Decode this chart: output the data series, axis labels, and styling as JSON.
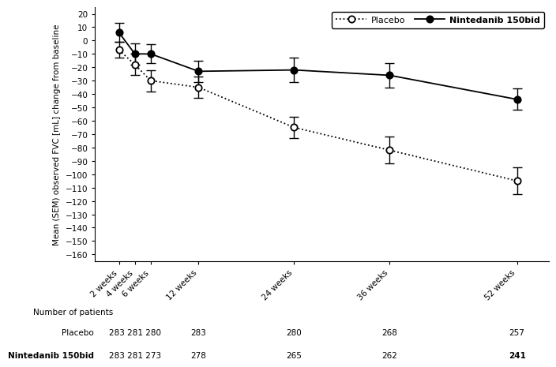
{
  "placebo_x": [
    2,
    4,
    6,
    12,
    24,
    36,
    52
  ],
  "placebo_y": [
    -7,
    -18,
    -30,
    -35,
    -65,
    -82,
    -105
  ],
  "placebo_yerr": [
    6,
    8,
    8,
    8,
    8,
    10,
    10
  ],
  "nintedanib_x": [
    2,
    4,
    6,
    12,
    24,
    36,
    52
  ],
  "nintedanib_y": [
    6,
    -10,
    -10,
    -23,
    -22,
    -26,
    -44
  ],
  "nintedanib_yerr": [
    7,
    8,
    7,
    8,
    9,
    9,
    8
  ],
  "placebo_label": "Placebo",
  "nintedanib_label": "Nintedanib 150bid",
  "ylabel": "Mean (SEM) observed FVC [mL] change from baseline",
  "ylim": [
    -165,
    25
  ],
  "yticks": [
    20,
    10,
    0,
    -10,
    -20,
    -30,
    -40,
    -50,
    -60,
    -70,
    -80,
    -90,
    -100,
    -110,
    -120,
    -130,
    -140,
    -150,
    -160
  ],
  "xtick_labels": [
    "2 weeks",
    "4 weeks",
    "6 weeks",
    "12 weeks",
    "24 weeks",
    "36 weeks",
    "52 weeks"
  ],
  "xtick_positions": [
    2,
    4,
    6,
    12,
    24,
    36,
    52
  ],
  "patient_counts_label": "Number of patients",
  "placebo_counts_label": "Placebo",
  "nintedanib_counts_label": "Nintedanib 150bid",
  "placebo_counts": [
    "283 281 280",
    "283",
    "280",
    "268",
    "257"
  ],
  "nintedanib_counts": [
    "283 281 273",
    "278",
    "265",
    "262",
    "241"
  ],
  "counts_x_positions_data": [
    4,
    12,
    24,
    36,
    52
  ],
  "bg_color": "#ffffff",
  "line_color": "#000000",
  "xlim": [
    -1,
    56
  ]
}
